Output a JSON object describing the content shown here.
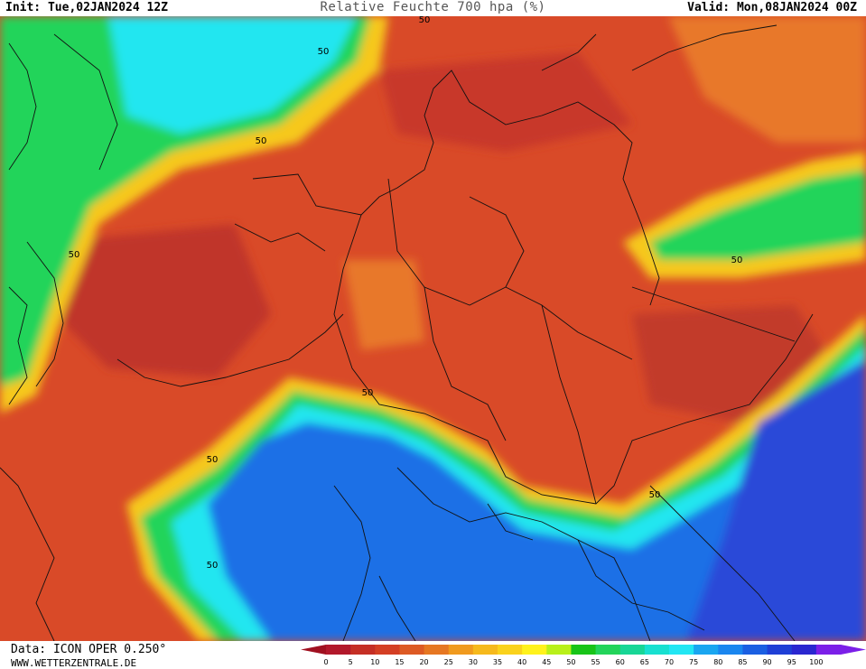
{
  "header": {
    "init": "Init: Tue,02JAN2024 12Z",
    "title": "Relative Feuchte 700 hpa (%)",
    "valid": "Valid: Mon,08JAN2024 00Z"
  },
  "footer": {
    "data_source": "Data: ICON OPER 0.250°",
    "website": "WWW.WETTERZENTRALE.DE"
  },
  "legend": {
    "ticks": [
      "0",
      "5",
      "10",
      "15",
      "20",
      "25",
      "30",
      "35",
      "40",
      "45",
      "50",
      "55",
      "60",
      "65",
      "70",
      "75",
      "80",
      "85",
      "90",
      "95",
      "100"
    ],
    "colors": [
      "#b2182b",
      "#c52f25",
      "#d43f24",
      "#dd5a24",
      "#e67722",
      "#f09a1e",
      "#f6b91c",
      "#fad21c",
      "#fff21c",
      "#b9f01a",
      "#18c418",
      "#23d45a",
      "#18d696",
      "#18e0d0",
      "#22e6f3",
      "#1aa6f0",
      "#1a86ef",
      "#1b5fe2",
      "#1f3fd6",
      "#2a26d0",
      "#7b1fe8"
    ]
  },
  "contour_labels": [
    "50",
    "50",
    "50",
    "50",
    "50",
    "50",
    "50",
    "50",
    "50"
  ],
  "colors": {
    "deep_red": "#c0342a",
    "orange_red": "#d94a28",
    "orange": "#e8782c",
    "yellow": "#f6c81c",
    "green": "#22d45a",
    "cyan": "#24e6f0",
    "blue": "#1f6fe6",
    "dark_blue": "#2a48d8"
  }
}
